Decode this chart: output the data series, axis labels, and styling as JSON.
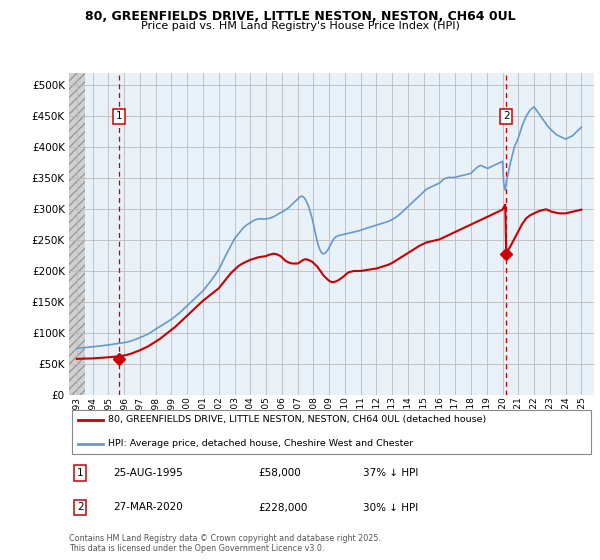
{
  "title1": "80, GREENFIELDS DRIVE, LITTLE NESTON, NESTON, CH64 0UL",
  "title2": "Price paid vs. HM Land Registry's House Price Index (HPI)",
  "legend_line1": "80, GREENFIELDS DRIVE, LITTLE NESTON, NESTON, CH64 0UL (detached house)",
  "legend_line2": "HPI: Average price, detached house, Cheshire West and Chester",
  "annotation1_label": "1",
  "annotation1_date": "25-AUG-1995",
  "annotation1_price": "£58,000",
  "annotation1_hpi": "37% ↓ HPI",
  "annotation2_label": "2",
  "annotation2_date": "27-MAR-2020",
  "annotation2_price": "£228,000",
  "annotation2_hpi": "30% ↓ HPI",
  "footnote": "Contains HM Land Registry data © Crown copyright and database right 2025.\nThis data is licensed under the Open Government Licence v3.0.",
  "grid_color": "#bbbbbb",
  "plot_bg_color": "#e8f0f8",
  "hatch_bg_color": "#d8d8d8",
  "red_line_color": "#cc0000",
  "blue_line_color": "#6699cc",
  "dashed_line_color": "#cc0000",
  "ylim": [
    0,
    520000
  ],
  "yticks": [
    0,
    50000,
    100000,
    150000,
    200000,
    250000,
    300000,
    350000,
    400000,
    450000,
    500000
  ],
  "xlim_start": 1992.5,
  "xlim_end": 2025.8,
  "xticks": [
    1993,
    1994,
    1995,
    1996,
    1997,
    1998,
    1999,
    2000,
    2001,
    2002,
    2003,
    2004,
    2005,
    2006,
    2007,
    2008,
    2009,
    2010,
    2011,
    2012,
    2013,
    2014,
    2015,
    2016,
    2017,
    2018,
    2019,
    2020,
    2021,
    2022,
    2023,
    2024,
    2025
  ],
  "sale1_x": 1995.65,
  "sale1_y": 58000,
  "sale2_x": 2020.23,
  "sale2_y": 228000,
  "hatch_end_x": 1993.5,
  "hpi_years": [
    1993.0,
    1993.08,
    1993.17,
    1993.25,
    1993.33,
    1993.42,
    1993.5,
    1993.58,
    1993.67,
    1993.75,
    1993.83,
    1993.92,
    1994.0,
    1994.08,
    1994.17,
    1994.25,
    1994.33,
    1994.42,
    1994.5,
    1994.58,
    1994.67,
    1994.75,
    1994.83,
    1994.92,
    1995.0,
    1995.08,
    1995.17,
    1995.25,
    1995.33,
    1995.42,
    1995.5,
    1995.58,
    1995.67,
    1995.75,
    1995.83,
    1995.92,
    1996.0,
    1996.08,
    1996.17,
    1996.25,
    1996.33,
    1996.42,
    1996.5,
    1996.58,
    1996.67,
    1996.75,
    1996.83,
    1996.92,
    1997.0,
    1997.25,
    1997.5,
    1997.75,
    1998.0,
    1998.25,
    1998.5,
    1998.75,
    1999.0,
    1999.25,
    1999.5,
    1999.75,
    2000.0,
    2000.25,
    2000.5,
    2000.75,
    2001.0,
    2001.25,
    2001.5,
    2001.75,
    2002.0,
    2002.25,
    2002.5,
    2002.75,
    2003.0,
    2003.25,
    2003.5,
    2003.75,
    2004.0,
    2004.25,
    2004.5,
    2004.75,
    2005.0,
    2005.08,
    2005.17,
    2005.25,
    2005.33,
    2005.42,
    2005.5,
    2005.58,
    2005.67,
    2005.75,
    2005.83,
    2005.92,
    2006.0,
    2006.08,
    2006.17,
    2006.25,
    2006.33,
    2006.42,
    2006.5,
    2006.58,
    2006.67,
    2006.75,
    2006.83,
    2006.92,
    2007.0,
    2007.08,
    2007.17,
    2007.25,
    2007.33,
    2007.42,
    2007.5,
    2007.58,
    2007.67,
    2007.75,
    2007.83,
    2007.92,
    2008.0,
    2008.08,
    2008.17,
    2008.25,
    2008.33,
    2008.42,
    2008.5,
    2008.58,
    2008.67,
    2008.75,
    2008.83,
    2008.92,
    2009.0,
    2009.08,
    2009.17,
    2009.25,
    2009.33,
    2009.42,
    2009.5,
    2009.58,
    2009.67,
    2009.75,
    2009.83,
    2009.92,
    2010.0,
    2010.08,
    2010.17,
    2010.25,
    2010.33,
    2010.42,
    2010.5,
    2010.58,
    2010.67,
    2010.75,
    2010.83,
    2010.92,
    2011.0,
    2011.25,
    2011.5,
    2011.75,
    2012.0,
    2012.25,
    2012.5,
    2012.75,
    2013.0,
    2013.25,
    2013.5,
    2013.75,
    2014.0,
    2014.25,
    2014.5,
    2014.75,
    2015.0,
    2015.08,
    2015.17,
    2015.25,
    2015.33,
    2015.42,
    2015.5,
    2015.58,
    2015.67,
    2015.75,
    2015.83,
    2015.92,
    2016.0,
    2016.08,
    2016.17,
    2016.25,
    2016.33,
    2016.42,
    2016.5,
    2016.58,
    2016.67,
    2016.75,
    2016.83,
    2016.92,
    2017.0,
    2017.08,
    2017.17,
    2017.25,
    2017.33,
    2017.42,
    2017.5,
    2017.58,
    2017.67,
    2017.75,
    2017.83,
    2017.92,
    2018.0,
    2018.08,
    2018.17,
    2018.25,
    2018.33,
    2018.42,
    2018.5,
    2018.58,
    2018.67,
    2018.75,
    2018.83,
    2018.92,
    2019.0,
    2019.08,
    2019.17,
    2019.25,
    2019.33,
    2019.42,
    2019.5,
    2019.58,
    2019.67,
    2019.75,
    2019.83,
    2019.92,
    2020.0,
    2020.08,
    2020.17,
    2020.25,
    2020.5,
    2020.75,
    2021.0,
    2021.25,
    2021.5,
    2021.75,
    2022.0,
    2022.08,
    2022.17,
    2022.25,
    2022.33,
    2022.42,
    2022.5,
    2022.58,
    2022.67,
    2022.75,
    2022.83,
    2022.92,
    2023.0,
    2023.08,
    2023.17,
    2023.25,
    2023.33,
    2023.42,
    2023.5,
    2023.58,
    2023.67,
    2023.75,
    2023.83,
    2023.92,
    2024.0,
    2024.08,
    2024.17,
    2024.25,
    2024.33,
    2024.42,
    2024.5,
    2024.58,
    2024.67,
    2024.75,
    2024.83,
    2024.92,
    2025.0
  ],
  "hpi_values": [
    75000,
    75200,
    75400,
    75600,
    75800,
    76000,
    76200,
    76400,
    76600,
    76800,
    77000,
    77200,
    77500,
    77700,
    77900,
    78100,
    78300,
    78500,
    78800,
    79100,
    79400,
    79700,
    80000,
    80300,
    80600,
    80900,
    81200,
    81500,
    81800,
    82100,
    82400,
    82700,
    83000,
    83300,
    83600,
    83900,
    84200,
    84600,
    85000,
    85600,
    86200,
    86800,
    87500,
    88200,
    89000,
    89800,
    90700,
    91500,
    92500,
    95000,
    98000,
    102000,
    106000,
    110000,
    114000,
    118000,
    122000,
    127000,
    132000,
    138000,
    144000,
    150000,
    156000,
    162000,
    168000,
    176000,
    184000,
    193000,
    202000,
    215000,
    228000,
    240000,
    252000,
    260000,
    268000,
    274000,
    278000,
    282000,
    284000,
    284000,
    284000,
    284500,
    285000,
    285500,
    286000,
    287000,
    288000,
    289000,
    290500,
    292000,
    293000,
    294000,
    295000,
    296000,
    297500,
    299000,
    300500,
    302000,
    304000,
    306000,
    308000,
    310000,
    312000,
    314000,
    316000,
    318000,
    320000,
    321000,
    320000,
    318000,
    315000,
    311000,
    306000,
    300000,
    293000,
    285000,
    276000,
    266000,
    256000,
    247000,
    240000,
    234000,
    230000,
    228000,
    228000,
    229000,
    231000,
    234000,
    238000,
    242000,
    246000,
    250000,
    253000,
    255000,
    256000,
    257000,
    257500,
    258000,
    258500,
    259000,
    259500,
    260000,
    260500,
    261000,
    261500,
    262000,
    262500,
    263000,
    263500,
    264000,
    264500,
    265000,
    266000,
    268000,
    270000,
    272000,
    274000,
    276000,
    278000,
    280000,
    283000,
    287000,
    292000,
    298000,
    304000,
    310000,
    316000,
    322000,
    328000,
    330000,
    332000,
    333000,
    334000,
    335000,
    336000,
    337000,
    338000,
    339000,
    340000,
    341000,
    342000,
    344000,
    346000,
    348000,
    349000,
    350000,
    350500,
    351000,
    351000,
    351000,
    351000,
    351000,
    351500,
    352000,
    352500,
    353000,
    353500,
    354000,
    354500,
    355000,
    355500,
    356000,
    356500,
    357000,
    358000,
    360000,
    362000,
    364000,
    366000,
    368000,
    369000,
    370000,
    370000,
    369000,
    368000,
    367000,
    366000,
    366000,
    367000,
    368000,
    369000,
    370000,
    371000,
    372000,
    373000,
    374000,
    375000,
    376000,
    377000,
    340000,
    330000,
    345000,
    375000,
    400000,
    415000,
    435000,
    450000,
    460000,
    465000,
    462000,
    459000,
    456000,
    453000,
    450000,
    447000,
    444000,
    441000,
    438000,
    435000,
    432000,
    430000,
    428000,
    426000,
    424000,
    422000,
    420000,
    419000,
    418000,
    417000,
    416000,
    415000,
    414000,
    413000,
    414000,
    415000,
    416000,
    417000,
    418000,
    420000,
    422000,
    424000,
    426000,
    428000,
    430000,
    432000
  ],
  "red_years": [
    1993.0,
    1993.25,
    1993.5,
    1993.75,
    1994.0,
    1994.25,
    1994.5,
    1994.75,
    1995.0,
    1995.25,
    1995.5,
    1995.65,
    1995.75,
    1996.0,
    1996.25,
    1996.5,
    1996.75,
    1997.0,
    1997.25,
    1997.5,
    1997.75,
    1998.0,
    1998.25,
    1998.5,
    1998.75,
    1999.0,
    1999.25,
    1999.5,
    1999.75,
    2000.0,
    2000.25,
    2000.5,
    2000.75,
    2001.0,
    2001.25,
    2001.5,
    2001.75,
    2002.0,
    2002.25,
    2002.5,
    2002.75,
    2003.0,
    2003.25,
    2003.5,
    2003.75,
    2004.0,
    2004.25,
    2004.5,
    2004.75,
    2005.0,
    2005.08,
    2005.17,
    2005.25,
    2005.33,
    2005.42,
    2005.5,
    2005.58,
    2005.67,
    2005.75,
    2005.83,
    2005.92,
    2006.0,
    2006.08,
    2006.17,
    2006.25,
    2006.33,
    2006.42,
    2006.5,
    2006.58,
    2006.67,
    2006.75,
    2006.83,
    2006.92,
    2007.0,
    2007.08,
    2007.17,
    2007.25,
    2007.33,
    2007.42,
    2007.5,
    2007.58,
    2007.67,
    2007.75,
    2007.83,
    2007.92,
    2008.0,
    2008.08,
    2008.17,
    2008.25,
    2008.33,
    2008.42,
    2008.5,
    2008.58,
    2008.67,
    2008.75,
    2008.83,
    2008.92,
    2009.0,
    2009.08,
    2009.17,
    2009.25,
    2009.33,
    2009.42,
    2009.5,
    2009.58,
    2009.67,
    2009.75,
    2009.83,
    2009.92,
    2010.0,
    2010.08,
    2010.17,
    2010.25,
    2010.33,
    2010.42,
    2010.5,
    2010.58,
    2010.67,
    2010.75,
    2010.83,
    2010.92,
    2011.0,
    2011.25,
    2011.5,
    2011.75,
    2012.0,
    2012.25,
    2012.5,
    2012.75,
    2013.0,
    2013.25,
    2013.5,
    2013.75,
    2014.0,
    2014.25,
    2014.5,
    2014.75,
    2015.0,
    2015.08,
    2015.17,
    2015.25,
    2015.33,
    2015.42,
    2015.5,
    2015.58,
    2015.67,
    2015.75,
    2015.83,
    2015.92,
    2016.0,
    2016.08,
    2016.17,
    2016.25,
    2016.33,
    2016.42,
    2016.5,
    2016.58,
    2016.67,
    2016.75,
    2016.83,
    2016.92,
    2017.0,
    2017.08,
    2017.17,
    2017.25,
    2017.33,
    2017.42,
    2017.5,
    2017.58,
    2017.67,
    2017.75,
    2017.83,
    2017.92,
    2018.0,
    2018.08,
    2018.17,
    2018.25,
    2018.33,
    2018.42,
    2018.5,
    2018.58,
    2018.67,
    2018.75,
    2018.83,
    2018.92,
    2019.0,
    2019.08,
    2019.17,
    2019.25,
    2019.33,
    2019.42,
    2019.5,
    2019.58,
    2019.67,
    2019.75,
    2019.83,
    2019.92,
    2020.0,
    2020.08,
    2020.17,
    2020.23,
    2020.5,
    2020.75,
    2021.0,
    2021.25,
    2021.5,
    2021.75,
    2022.0,
    2022.08,
    2022.17,
    2022.25,
    2022.33,
    2022.42,
    2022.5,
    2022.58,
    2022.67,
    2022.75,
    2022.83,
    2022.92,
    2023.0,
    2023.08,
    2023.17,
    2023.25,
    2023.33,
    2023.42,
    2023.5,
    2023.58,
    2023.67,
    2023.75,
    2023.83,
    2023.92,
    2024.0,
    2024.08,
    2024.17,
    2024.25,
    2024.33,
    2024.42,
    2024.5,
    2024.58,
    2024.67,
    2024.75,
    2024.83,
    2024.92,
    2025.0
  ],
  "red_values": [
    58000,
    58200,
    58400,
    58600,
    58800,
    59200,
    59600,
    60100,
    60600,
    61200,
    61800,
    58000,
    62500,
    63500,
    65000,
    67000,
    69500,
    72000,
    75000,
    78000,
    82000,
    86000,
    90000,
    95000,
    100000,
    105000,
    110000,
    116000,
    122000,
    128000,
    134000,
    140000,
    146000,
    152000,
    157000,
    162000,
    167000,
    172000,
    180000,
    188000,
    196000,
    202000,
    208000,
    212000,
    215000,
    218000,
    220000,
    222000,
    223000,
    224000,
    225000,
    226000,
    226500,
    227000,
    227500,
    228000,
    227500,
    227000,
    226000,
    225000,
    224000,
    222000,
    220000,
    218000,
    216000,
    215000,
    214000,
    213000,
    212500,
    212000,
    212000,
    212000,
    212000,
    212000,
    213000,
    214500,
    216000,
    217500,
    218500,
    219000,
    218500,
    218000,
    217000,
    216000,
    215000,
    213000,
    211000,
    209000,
    207000,
    204000,
    201000,
    198000,
    195000,
    192000,
    190000,
    188000,
    186000,
    184000,
    183000,
    182000,
    182000,
    182500,
    183000,
    184000,
    185000,
    186500,
    188000,
    189500,
    191000,
    193000,
    195000,
    196500,
    198000,
    198500,
    199000,
    199500,
    200000,
    200000,
    200000,
    200000,
    200000,
    200000,
    201000,
    202000,
    203000,
    204000,
    206000,
    208000,
    210000,
    213000,
    217000,
    221000,
    225000,
    229000,
    233000,
    237000,
    241000,
    244000,
    245000,
    246000,
    246500,
    247000,
    247500,
    248000,
    248500,
    249000,
    249500,
    250000,
    250500,
    251000,
    252000,
    253000,
    254000,
    255000,
    256000,
    257000,
    258000,
    259000,
    260000,
    261000,
    262000,
    263000,
    264000,
    265000,
    266000,
    267000,
    268000,
    269000,
    270000,
    271000,
    272000,
    273000,
    274000,
    275000,
    276000,
    277000,
    278000,
    279000,
    280000,
    281000,
    282000,
    283000,
    284000,
    285000,
    286000,
    287000,
    288000,
    289000,
    290000,
    291000,
    292000,
    293000,
    294000,
    295000,
    296000,
    297000,
    298000,
    299000,
    303000,
    307000,
    228000,
    240000,
    252000,
    264000,
    276000,
    285000,
    290000,
    293000,
    294000,
    295000,
    296000,
    297000,
    297500,
    298000,
    298500,
    299000,
    299500,
    299000,
    298000,
    297000,
    296000,
    295500,
    295000,
    294500,
    294000,
    293500,
    293000,
    293000,
    293000,
    293000,
    293000,
    293000,
    293500,
    294000,
    294500,
    295000,
    295500,
    296000,
    296500,
    297000,
    297500,
    298000,
    298500,
    299000
  ]
}
